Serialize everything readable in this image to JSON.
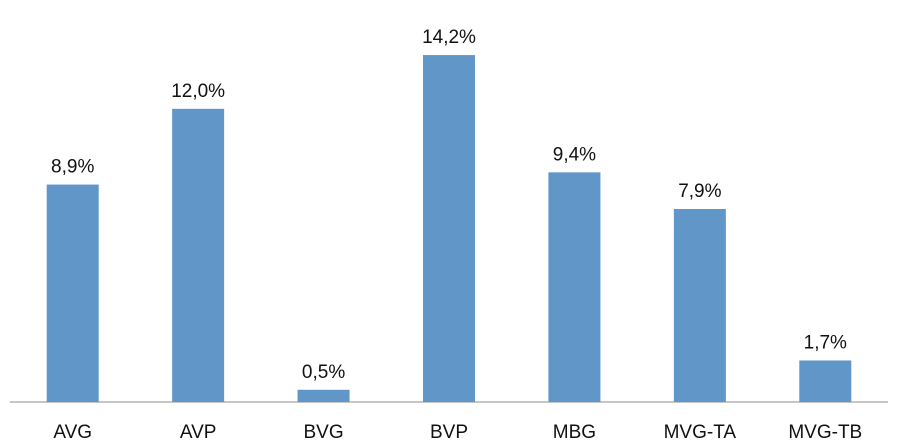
{
  "chart_data": {
    "type": "bar",
    "categories": [
      "AVG",
      "AVP",
      "BVG",
      "BVP",
      "MBG",
      "MVG-TA",
      "MVG-TB"
    ],
    "values": [
      8.9,
      12.0,
      0.5,
      14.2,
      9.4,
      7.9,
      1.7
    ],
    "data_labels": [
      "8,9%",
      "12,0%",
      "0,5%",
      "14,2%",
      "9,4%",
      "7,9%",
      "1,7%"
    ],
    "title": "",
    "xlabel": "",
    "ylabel": "",
    "ylim": [
      0,
      16
    ],
    "grid": false,
    "legend": "none",
    "colors": {
      "bar": "#6096c8",
      "axis": "#8c8c8c",
      "text": "#111111"
    }
  }
}
